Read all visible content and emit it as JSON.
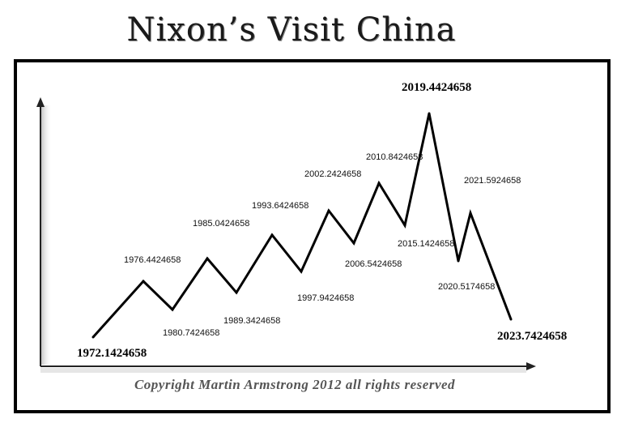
{
  "title": "Nixon’s Visit China",
  "copyright": "Copyright Martin Armstrong 2012 all rights reserved",
  "chart_data": {
    "type": "line",
    "title": "Nixon’s Visit China",
    "xlabel": "",
    "ylabel": "",
    "points": [
      {
        "label": "1972.1424658",
        "type": "low",
        "emphasis": true
      },
      {
        "label": "1976.4424658",
        "type": "high",
        "emphasis": false
      },
      {
        "label": "1980.7424658",
        "type": "low",
        "emphasis": false
      },
      {
        "label": "1985.0424658",
        "type": "high",
        "emphasis": false
      },
      {
        "label": "1989.3424658",
        "type": "low",
        "emphasis": false
      },
      {
        "label": "1993.6424658",
        "type": "high",
        "emphasis": false
      },
      {
        "label": "1997.9424658",
        "type": "low",
        "emphasis": false
      },
      {
        "label": "2002.2424658",
        "type": "high",
        "emphasis": false
      },
      {
        "label": "2006.5424658",
        "type": "low",
        "emphasis": false
      },
      {
        "label": "2010.8424658",
        "type": "high",
        "emphasis": false
      },
      {
        "label": "2015.1424658",
        "type": "low",
        "emphasis": false
      },
      {
        "label": "2019.4424658",
        "type": "high",
        "emphasis": true
      },
      {
        "label": "2020.5174658",
        "type": "low",
        "emphasis": false
      },
      {
        "label": "2021.5924658",
        "type": "high",
        "emphasis": false
      },
      {
        "label": "2023.7424658",
        "type": "low",
        "emphasis": true
      }
    ],
    "grid": false,
    "legend": "none",
    "line_color": "#000000"
  }
}
